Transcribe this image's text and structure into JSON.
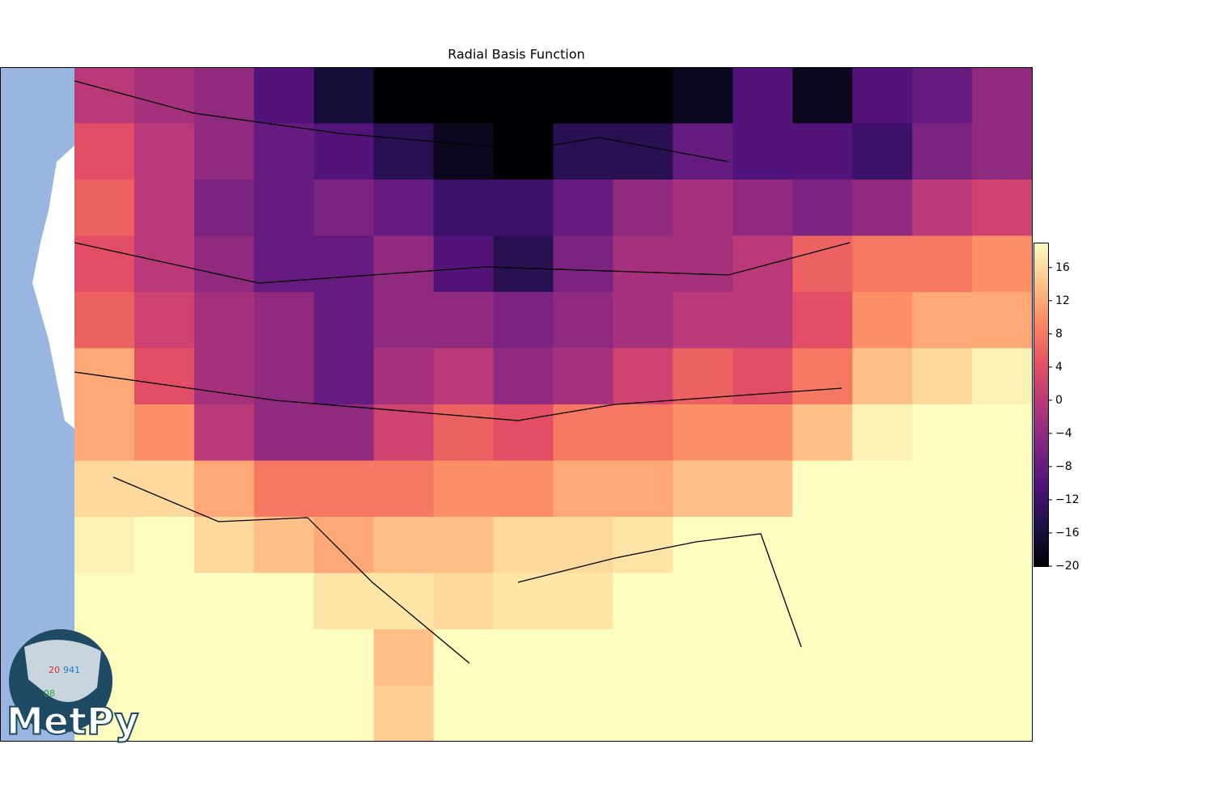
{
  "chart_data": {
    "type": "heatmap",
    "title": "Radial Basis Function",
    "colormap": "magma",
    "clim": [
      -20,
      19
    ],
    "cticks": [
      {
        "value": -20,
        "label": "−20"
      },
      {
        "value": -16,
        "label": "−16"
      },
      {
        "value": -12,
        "label": "−12"
      },
      {
        "value": -8,
        "label": "−8"
      },
      {
        "value": -4,
        "label": "−4"
      },
      0,
      4,
      8,
      12,
      16
    ],
    "values": [
      [
        0,
        -2,
        -4,
        -10,
        -16,
        -20,
        -20,
        -20,
        -20,
        -20,
        -18,
        -10,
        -18,
        -10,
        -8,
        -4
      ],
      [
        4,
        0,
        -4,
        -8,
        -10,
        -14,
        -18,
        -20,
        -14,
        -14,
        -8,
        -10,
        -10,
        -12,
        -6,
        -4
      ],
      [
        6,
        0,
        -6,
        -8,
        -6,
        -8,
        -12,
        -12,
        -8,
        -4,
        -2,
        -4,
        -6,
        -4,
        0,
        2
      ],
      [
        4,
        0,
        -4,
        -8,
        -8,
        -4,
        -10,
        -14,
        -6,
        -2,
        -2,
        0,
        6,
        8,
        8,
        10
      ],
      [
        6,
        2,
        -2,
        -4,
        -8,
        -4,
        -4,
        -6,
        -4,
        -2,
        0,
        0,
        4,
        10,
        12,
        12
      ],
      [
        12,
        4,
        -2,
        -4,
        -8,
        -2,
        0,
        -4,
        -2,
        2,
        6,
        4,
        8,
        14,
        16,
        18
      ],
      [
        12,
        10,
        0,
        -4,
        -4,
        2,
        6,
        4,
        8,
        8,
        10,
        10,
        14,
        18,
        19,
        19
      ],
      [
        16,
        16,
        12,
        8,
        8,
        8,
        10,
        10,
        12,
        12,
        14,
        14,
        19,
        19,
        19,
        19
      ],
      [
        18,
        19,
        16,
        14,
        12,
        14,
        14,
        16,
        16,
        17,
        19,
        19,
        19,
        19,
        19,
        19
      ],
      [
        19,
        19,
        19,
        19,
        17,
        17,
        16,
        17,
        17,
        19,
        19,
        19,
        19,
        19,
        19,
        19
      ],
      [
        19,
        19,
        19,
        19,
        19,
        14,
        19,
        19,
        19,
        19,
        19,
        19,
        19,
        19,
        19,
        19
      ],
      [
        19,
        19,
        19,
        19,
        19,
        15,
        19,
        19,
        19,
        19,
        19,
        19,
        19,
        19,
        19,
        19
      ]
    ]
  },
  "logo": {
    "name": "MetPy",
    "temperature": "20",
    "pressure": "941",
    "dewpoint": "08"
  }
}
